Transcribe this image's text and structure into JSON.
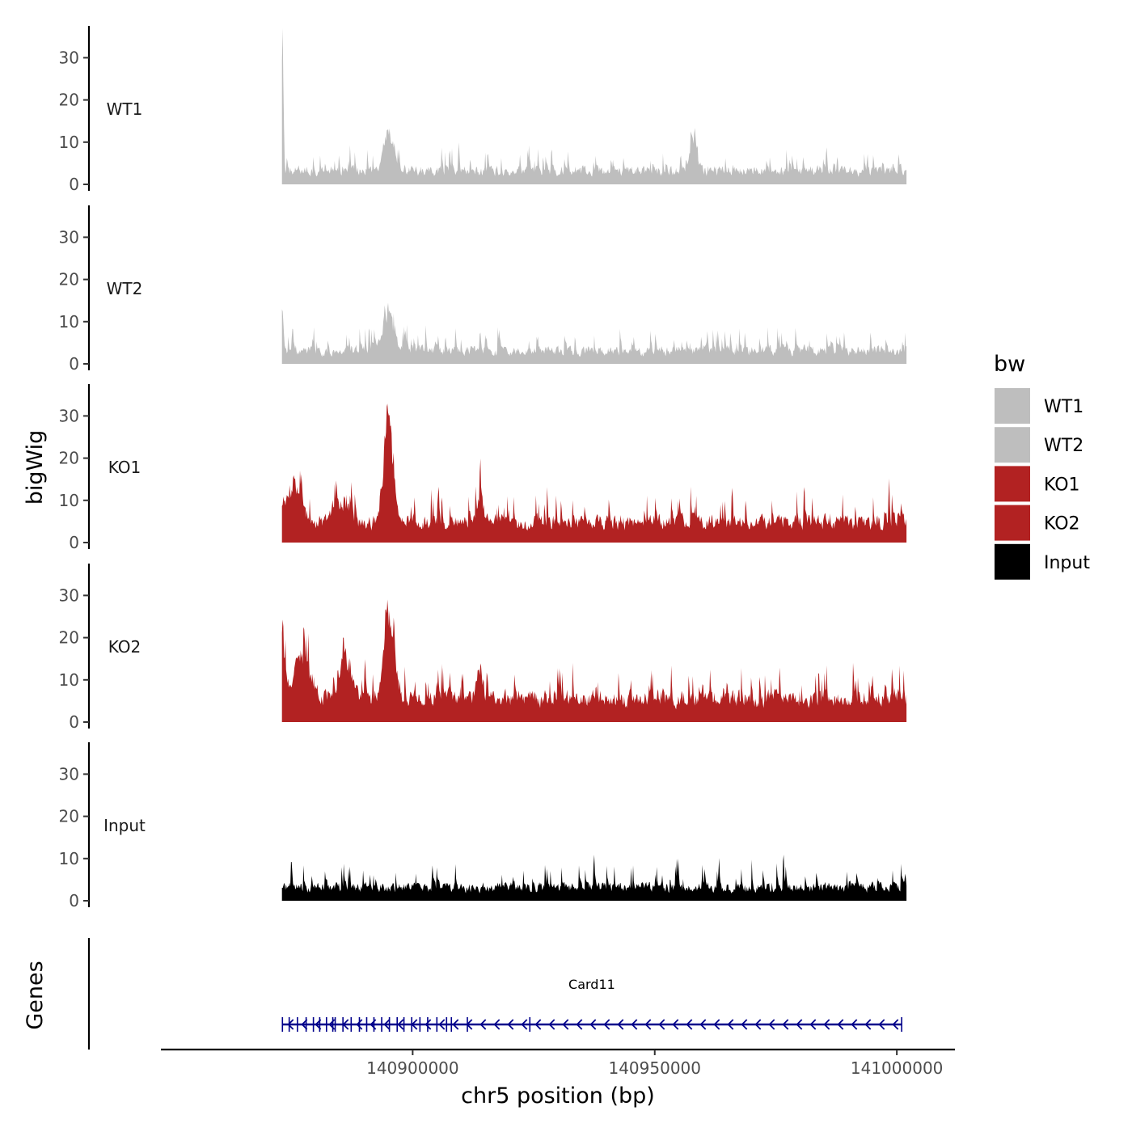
{
  "chart_data": {
    "type": "area",
    "region_start": 140873000,
    "region_end": 141002000,
    "y_axis_title": "bigWig",
    "x_axis_title": "chr5 position (bp)",
    "genes_axis_title": "Genes",
    "ylim": [
      0,
      37
    ],
    "y_ticks": [
      0,
      10,
      20,
      30
    ],
    "y_tick_labels": [
      "0",
      "10",
      "20",
      "30"
    ],
    "x_domain": [
      140848000,
      141012000
    ],
    "x_ticks": [
      140900000,
      140950000,
      141000000
    ],
    "x_tick_labels": [
      "140900000",
      "140950000",
      "141000000"
    ],
    "tracks": [
      {
        "name": "WT1",
        "color": "#BEBEBE",
        "base": 4,
        "noise": 4,
        "seed": 11,
        "peaks": [
          {
            "pos": 140873100,
            "height": 34,
            "width": 300
          },
          {
            "pos": 140895000,
            "height": 10,
            "width": 1500
          },
          {
            "pos": 140958000,
            "height": 8,
            "width": 900
          }
        ]
      },
      {
        "name": "WT2",
        "color": "#BEBEBE",
        "base": 4,
        "noise": 4,
        "seed": 23,
        "peaks": [
          {
            "pos": 140873100,
            "height": 11,
            "width": 400
          },
          {
            "pos": 140895000,
            "height": 10,
            "width": 1500
          }
        ]
      },
      {
        "name": "KO1",
        "color": "#B22222",
        "base": 6,
        "noise": 6,
        "seed": 37,
        "peaks": [
          {
            "pos": 140875000,
            "height": 10,
            "width": 2500
          },
          {
            "pos": 140885000,
            "height": 6,
            "width": 2000
          },
          {
            "pos": 140895000,
            "height": 24,
            "width": 1400
          },
          {
            "pos": 140914000,
            "height": 8,
            "width": 800
          }
        ]
      },
      {
        "name": "KO2",
        "color": "#B22222",
        "base": 7,
        "noise": 6,
        "seed": 53,
        "peaks": [
          {
            "pos": 140873000,
            "height": 20,
            "width": 700
          },
          {
            "pos": 140877000,
            "height": 10,
            "width": 2500
          },
          {
            "pos": 140886000,
            "height": 10,
            "width": 2000
          },
          {
            "pos": 140895000,
            "height": 25,
            "width": 1400
          },
          {
            "pos": 140914000,
            "height": 8,
            "width": 800
          }
        ]
      },
      {
        "name": "Input",
        "color": "#000000",
        "base": 4,
        "noise": 5,
        "seed": 71,
        "peaks": []
      }
    ],
    "legend": {
      "title": "bw",
      "items": [
        {
          "label": "WT1",
          "color": "#BEBEBE"
        },
        {
          "label": "WT2",
          "color": "#BEBEBE"
        },
        {
          "label": "KO1",
          "color": "#B22222"
        },
        {
          "label": "KO2",
          "color": "#B22222"
        },
        {
          "label": "Input",
          "color": "#000000"
        }
      ]
    },
    "gene": {
      "name": "Card11",
      "start": 140873000,
      "end": 141001000,
      "strand": "-",
      "color": "#00008B",
      "exons": [
        140873100,
        140874500,
        140876200,
        140878000,
        140879500,
        140880800,
        140882200,
        140883500,
        140884000,
        140885600,
        140887300,
        140889000,
        140890500,
        140892000,
        140893600,
        140895200,
        140896800,
        140898200,
        140899800,
        140901500,
        140903100,
        140905000,
        140907000,
        140908000,
        140911300,
        140924200,
        141001000
      ]
    }
  }
}
